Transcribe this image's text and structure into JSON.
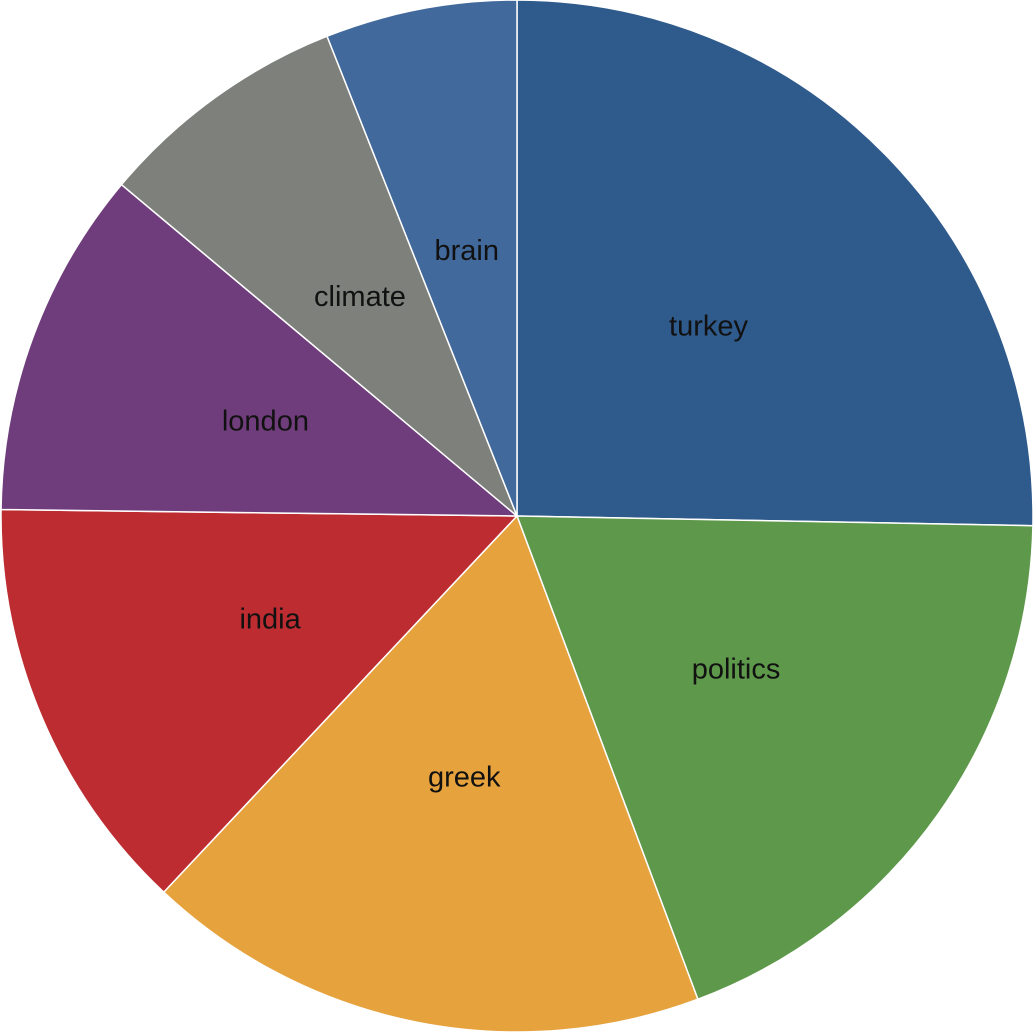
{
  "chart_data": {
    "type": "pie",
    "start_angle_deg": 0,
    "direction": "clockwise",
    "slices": [
      {
        "label": "turkey",
        "value": 25.3,
        "color": "#2f5a8c"
      },
      {
        "label": "politics",
        "value": 19.0,
        "color": "#5e984a"
      },
      {
        "label": "greek",
        "value": 17.7,
        "color": "#e6a23d"
      },
      {
        "label": "india",
        "value": 13.2,
        "color": "#bd2c31"
      },
      {
        "label": "london",
        "value": 10.9,
        "color": "#6f3d7c"
      },
      {
        "label": "climate",
        "value": 7.9,
        "color": "#7e807c"
      },
      {
        "label": "brain",
        "value": 6.0,
        "color": "#42699b"
      }
    ]
  }
}
